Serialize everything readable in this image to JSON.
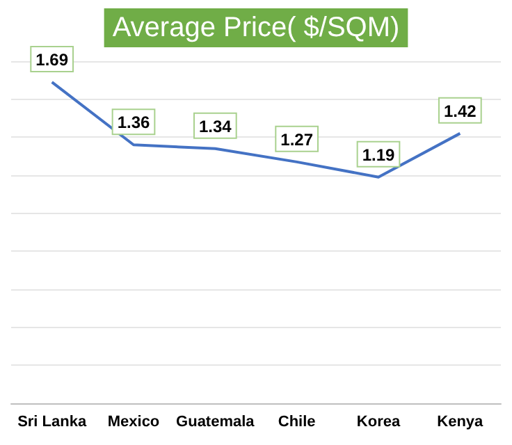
{
  "chart_data": {
    "type": "line",
    "title": "Average Price( $/SQM)",
    "categories": [
      "Sri Lanka",
      "Mexico",
      "Guatemala",
      "Chile",
      "Korea",
      "Kenya"
    ],
    "values": [
      1.69,
      1.36,
      1.34,
      1.27,
      1.19,
      1.42
    ],
    "color": "#4472c4",
    "data_labels": true,
    "marker": "none",
    "line_style": "solid",
    "ylim": [
      0,
      1.8
    ],
    "yticks": [
      {
        "value": 0,
        "label": null
      },
      {
        "value": 0.2,
        "label": null
      },
      {
        "value": 0.4,
        "label": null
      },
      {
        "value": 0.6,
        "label": null
      },
      {
        "value": 0.8,
        "label": null
      },
      {
        "value": 1,
        "label": null
      },
      {
        "value": 1.2,
        "label": null
      },
      {
        "value": 1.4,
        "label": null
      },
      {
        "value": 1.6,
        "label": null
      },
      {
        "value": 1.8,
        "label": null
      }
    ],
    "grid": "y",
    "tick_labels": "x"
  }
}
